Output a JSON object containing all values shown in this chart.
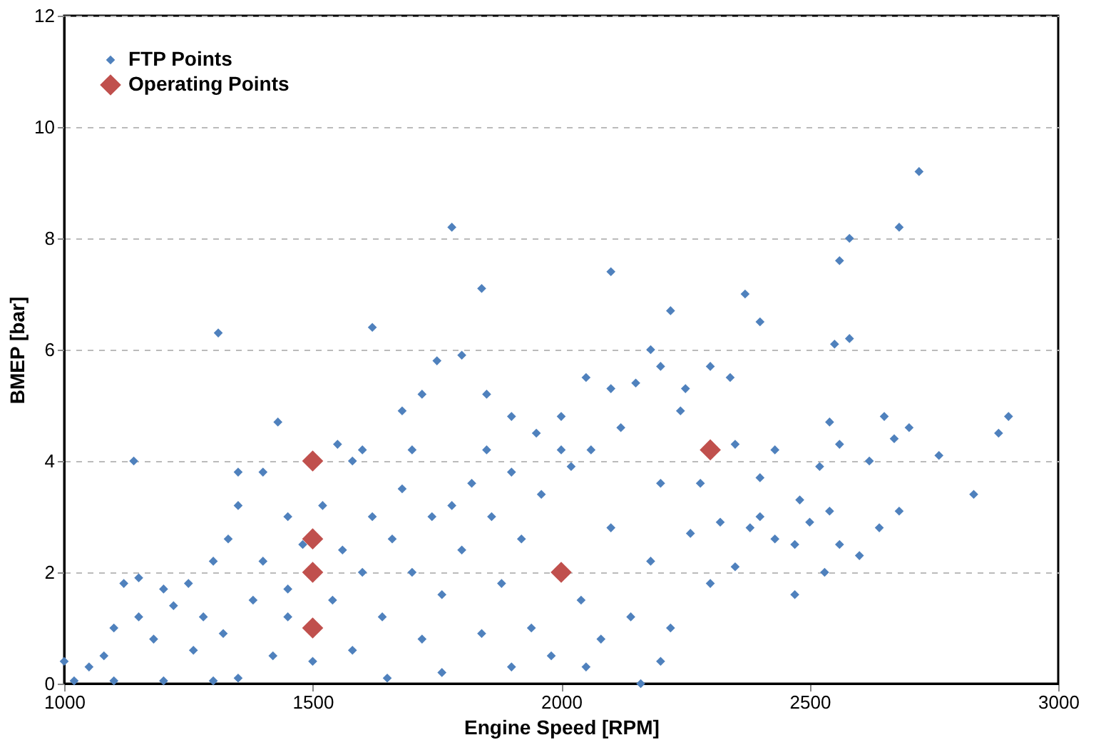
{
  "chart_data": {
    "type": "scatter",
    "xlabel": "Engine Speed [RPM]",
    "ylabel": "BMEP [bar]",
    "xlim": [
      1000,
      3000
    ],
    "xticks": [
      1000,
      1500,
      2000,
      2500,
      3000
    ],
    "ylim": [
      0,
      12
    ],
    "yticks": [
      0,
      2,
      4,
      6,
      8,
      10,
      12
    ],
    "grid": "y",
    "legend": "top left",
    "marker": "diamond",
    "series": [
      {
        "name": "FTP Points",
        "color": "#4f81bd",
        "x": [
          1310,
          1140,
          1780,
          1840,
          1620,
          2100,
          2220,
          2370,
          2400,
          2720,
          2680,
          2580,
          2560,
          2550,
          2580,
          2900,
          2880,
          2830,
          2760,
          2700,
          2650,
          2670,
          2620,
          2560,
          2540,
          2520,
          2480,
          2470,
          2530,
          2560,
          2600,
          2640,
          2680,
          2500,
          2540,
          2470,
          2430,
          2400,
          2380,
          2350,
          2430,
          2400,
          2350,
          2340,
          2300,
          2250,
          2200,
          2180,
          2150,
          2100,
          2050,
          2000,
          1950,
          1900,
          1850,
          1800,
          1750,
          1720,
          1680,
          1600,
          1580,
          1550,
          1430,
          1400,
          1350,
          1350,
          1330,
          1300,
          1250,
          1200,
          1150,
          1120,
          1100,
          1080,
          1050,
          1000,
          1020,
          1100,
          1200,
          1300,
          1350,
          1150,
          1180,
          1220,
          1260,
          1280,
          1320,
          1380,
          1400,
          1420,
          1450,
          1450,
          1480,
          1520,
          1540,
          1560,
          1580,
          1600,
          1620,
          1640,
          1660,
          1680,
          1700,
          1720,
          1740,
          1760,
          1780,
          1800,
          1820,
          1840,
          1860,
          1880,
          1900,
          1920,
          1940,
          1960,
          1980,
          2020,
          2040,
          2060,
          2080,
          2100,
          2120,
          2140,
          2160,
          2180,
          2200,
          2220,
          2240,
          2260,
          2280,
          2300,
          2320,
          2200,
          1760,
          1650,
          1900,
          2050,
          1500,
          1450,
          1700,
          1850,
          2000
        ],
        "values": [
          6.3,
          4.0,
          8.2,
          7.1,
          6.4,
          7.4,
          6.7,
          7.0,
          6.5,
          9.2,
          8.2,
          8.0,
          7.6,
          6.1,
          6.2,
          4.8,
          4.5,
          3.4,
          4.1,
          4.6,
          4.8,
          4.4,
          4.0,
          4.3,
          4.7,
          3.9,
          3.3,
          2.5,
          2.0,
          2.5,
          2.3,
          2.8,
          3.1,
          2.9,
          3.1,
          1.6,
          2.6,
          3.0,
          2.8,
          2.1,
          4.2,
          3.7,
          4.3,
          5.5,
          5.7,
          5.3,
          5.7,
          6.0,
          5.4,
          5.3,
          5.5,
          4.8,
          4.5,
          4.8,
          5.2,
          5.9,
          5.8,
          5.2,
          4.9,
          4.2,
          4.0,
          4.3,
          4.7,
          3.8,
          3.8,
          3.2,
          2.6,
          2.2,
          1.8,
          1.7,
          1.9,
          1.8,
          1.0,
          0.5,
          0.3,
          0.4,
          0.05,
          0.05,
          0.05,
          0.05,
          0.1,
          1.2,
          0.8,
          1.4,
          0.6,
          1.2,
          0.9,
          1.5,
          2.2,
          0.5,
          3.0,
          1.7,
          2.5,
          3.2,
          1.5,
          2.4,
          0.6,
          2.0,
          3.0,
          1.2,
          2.6,
          3.5,
          2.0,
          0.8,
          3.0,
          1.6,
          3.2,
          2.4,
          3.6,
          0.9,
          3.0,
          1.8,
          3.8,
          2.6,
          1.0,
          3.4,
          0.5,
          3.9,
          1.5,
          4.2,
          0.8,
          2.8,
          4.6,
          1.2,
          0.0,
          2.2,
          3.6,
          1.0,
          4.9,
          2.7,
          3.6,
          1.8,
          2.9,
          0.4,
          0.2,
          0.1,
          0.3,
          0.3,
          0.4,
          1.2,
          4.2,
          4.2,
          4.2
        ]
      },
      {
        "name": "Operating Points",
        "color": "#c0504d",
        "x": [
          1500,
          1500,
          1500,
          1500,
          2000,
          2300
        ],
        "values": [
          4.0,
          2.6,
          2.0,
          1.0,
          2.0,
          4.2
        ]
      }
    ]
  }
}
